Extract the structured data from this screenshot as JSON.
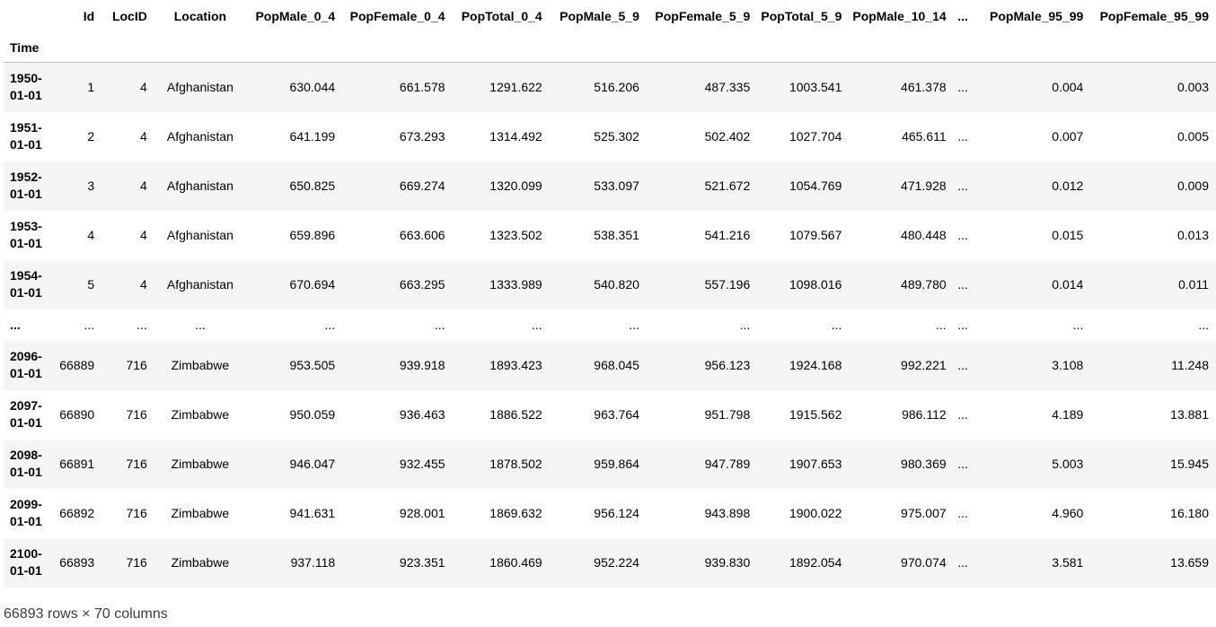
{
  "table": {
    "index_name": "Time",
    "columns": [
      "Id",
      "LocID",
      "Location",
      "PopMale_0_4",
      "PopFemale_0_4",
      "PopTotal_0_4",
      "PopMale_5_9",
      "PopFemale_5_9",
      "PopTotal_5_9",
      "PopMale_10_14",
      "...",
      "PopMale_95_99",
      "PopFemale_95_99"
    ],
    "rows": [
      {
        "index": [
          "1950-",
          "01-01"
        ],
        "cells": [
          "1",
          "4",
          "Afghanistan",
          "630.044",
          "661.578",
          "1291.622",
          "516.206",
          "487.335",
          "1003.541",
          "461.378",
          "...",
          "0.004",
          "0.003"
        ]
      },
      {
        "index": [
          "1951-",
          "01-01"
        ],
        "cells": [
          "2",
          "4",
          "Afghanistan",
          "641.199",
          "673.293",
          "1314.492",
          "525.302",
          "502.402",
          "1027.704",
          "465.611",
          "...",
          "0.007",
          "0.005"
        ]
      },
      {
        "index": [
          "1952-",
          "01-01"
        ],
        "cells": [
          "3",
          "4",
          "Afghanistan",
          "650.825",
          "669.274",
          "1320.099",
          "533.097",
          "521.672",
          "1054.769",
          "471.928",
          "...",
          "0.012",
          "0.009"
        ]
      },
      {
        "index": [
          "1953-",
          "01-01"
        ],
        "cells": [
          "4",
          "4",
          "Afghanistan",
          "659.896",
          "663.606",
          "1323.502",
          "538.351",
          "541.216",
          "1079.567",
          "480.448",
          "...",
          "0.015",
          "0.013"
        ]
      },
      {
        "index": [
          "1954-",
          "01-01"
        ],
        "cells": [
          "5",
          "4",
          "Afghanistan",
          "670.694",
          "663.295",
          "1333.989",
          "540.820",
          "557.196",
          "1098.016",
          "489.780",
          "...",
          "0.014",
          "0.011"
        ]
      },
      {
        "index": [
          "..."
        ],
        "cells": [
          "...",
          "...",
          "...",
          "...",
          "...",
          "...",
          "...",
          "...",
          "...",
          "...",
          "...",
          "...",
          "..."
        ]
      },
      {
        "index": [
          "2096-",
          "01-01"
        ],
        "cells": [
          "66889",
          "716",
          "Zimbabwe",
          "953.505",
          "939.918",
          "1893.423",
          "968.045",
          "956.123",
          "1924.168",
          "992.221",
          "...",
          "3.108",
          "11.248"
        ]
      },
      {
        "index": [
          "2097-",
          "01-01"
        ],
        "cells": [
          "66890",
          "716",
          "Zimbabwe",
          "950.059",
          "936.463",
          "1886.522",
          "963.764",
          "951.798",
          "1915.562",
          "986.112",
          "...",
          "4.189",
          "13.881"
        ]
      },
      {
        "index": [
          "2098-",
          "01-01"
        ],
        "cells": [
          "66891",
          "716",
          "Zimbabwe",
          "946.047",
          "932.455",
          "1878.502",
          "959.864",
          "947.789",
          "1907.653",
          "980.369",
          "...",
          "5.003",
          "15.945"
        ]
      },
      {
        "index": [
          "2099-",
          "01-01"
        ],
        "cells": [
          "66892",
          "716",
          "Zimbabwe",
          "941.631",
          "928.001",
          "1869.632",
          "956.124",
          "943.898",
          "1900.022",
          "975.007",
          "...",
          "4.960",
          "16.180"
        ]
      },
      {
        "index": [
          "2100-",
          "01-01"
        ],
        "cells": [
          "66893",
          "716",
          "Zimbabwe",
          "937.118",
          "923.351",
          "1860.469",
          "952.224",
          "939.830",
          "1892.054",
          "970.074",
          "...",
          "3.581",
          "13.659"
        ]
      }
    ]
  },
  "footer": "66893 rows × 70 columns"
}
